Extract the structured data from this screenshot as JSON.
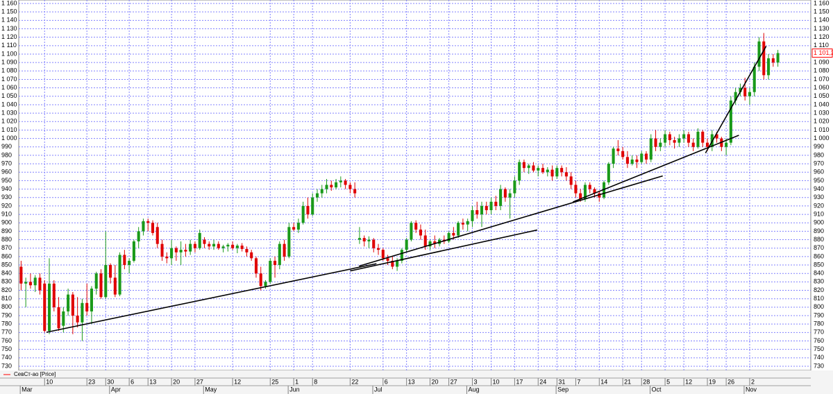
{
  "chart_data": {
    "type": "candlestick",
    "series": [
      {
        "name": "СевСт-ао [Price]",
        "color": "#ff0000",
        "up_color": "#1a9a1a",
        "down_color": "#e00000",
        "values": [
          [
            848,
            855,
            820,
            828
          ],
          [
            828,
            835,
            800,
            830
          ],
          [
            830,
            840,
            822,
            826
          ],
          [
            826,
            838,
            818,
            835
          ],
          [
            835,
            840,
            815,
            820
          ],
          [
            828,
            832,
            770,
            772
          ],
          [
            772,
            858,
            768,
            828
          ],
          [
            828,
            832,
            795,
            800
          ],
          [
            800,
            812,
            772,
            775
          ],
          [
            778,
            800,
            770,
            795
          ],
          [
            795,
            822,
            790,
            815
          ],
          [
            815,
            818,
            768,
            790
          ],
          [
            790,
            812,
            776,
            782
          ],
          [
            782,
            810,
            760,
            805
          ],
          [
            805,
            828,
            790,
            795
          ],
          [
            795,
            825,
            780,
            822
          ],
          [
            822,
            842,
            815,
            840
          ],
          [
            840,
            845,
            810,
            812
          ],
          [
            812,
            890,
            810,
            850
          ],
          [
            850,
            852,
            828,
            835
          ],
          [
            835,
            850,
            812,
            815
          ],
          [
            815,
            865,
            813,
            862
          ],
          [
            862,
            868,
            845,
            850
          ],
          [
            850,
            858,
            840,
            855
          ],
          [
            855,
            880,
            853,
            878
          ],
          [
            878,
            895,
            870,
            890
          ],
          [
            890,
            905,
            885,
            902
          ],
          [
            902,
            905,
            890,
            900
          ],
          [
            900,
            903,
            885,
            888
          ],
          [
            895,
            900,
            870,
            875
          ],
          [
            875,
            880,
            855,
            860
          ],
          [
            860,
            865,
            852,
            858
          ],
          [
            858,
            880,
            850,
            870
          ],
          [
            870,
            872,
            855,
            865
          ],
          [
            865,
            878,
            850,
            868
          ],
          [
            868,
            875,
            860,
            866
          ],
          [
            866,
            880,
            862,
            875
          ],
          [
            875,
            878,
            865,
            870
          ],
          [
            870,
            892,
            868,
            888
          ],
          [
            880,
            883,
            870,
            875
          ],
          [
            875,
            878,
            868,
            872
          ],
          [
            872,
            880,
            868,
            875
          ],
          [
            875,
            878,
            868,
            870
          ],
          [
            870,
            874,
            865,
            872
          ],
          [
            872,
            876,
            866,
            874
          ],
          [
            874,
            878,
            868,
            870
          ],
          [
            870,
            875,
            864,
            873
          ],
          [
            873,
            876,
            866,
            869
          ],
          [
            869,
            872,
            860,
            865
          ],
          [
            865,
            868,
            855,
            858
          ],
          [
            858,
            860,
            835,
            840
          ],
          [
            840,
            848,
            820,
            825
          ],
          [
            825,
            832,
            822,
            830
          ],
          [
            830,
            858,
            828,
            855
          ],
          [
            855,
            860,
            835,
            850
          ],
          [
            850,
            878,
            845,
            875
          ],
          [
            875,
            880,
            855,
            860
          ],
          [
            860,
            900,
            858,
            895
          ],
          [
            895,
            900,
            890,
            892
          ],
          [
            892,
            905,
            888,
            900
          ],
          [
            900,
            925,
            898,
            920
          ],
          [
            920,
            930,
            905,
            910
          ],
          [
            910,
            935,
            908,
            930
          ],
          [
            930,
            940,
            925,
            935
          ],
          [
            935,
            945,
            930,
            940
          ],
          [
            940,
            952,
            935,
            945
          ],
          [
            945,
            950,
            938,
            942
          ],
          [
            942,
            952,
            940,
            948
          ],
          [
            948,
            955,
            942,
            950
          ],
          [
            950,
            952,
            940,
            945
          ],
          [
            945,
            948,
            935,
            940
          ],
          [
            940,
            948,
            930,
            935
          ],
          [
            880,
            895,
            875,
            882
          ],
          [
            882,
            885,
            872,
            878
          ],
          [
            878,
            884,
            870,
            880
          ],
          [
            880,
            882,
            865,
            870
          ],
          [
            870,
            875,
            862,
            868
          ],
          [
            868,
            870,
            855,
            858
          ],
          [
            858,
            862,
            850,
            855
          ],
          [
            855,
            860,
            845,
            848
          ],
          [
            848,
            858,
            843,
            855
          ],
          [
            855,
            870,
            852,
            868
          ],
          [
            868,
            882,
            865,
            880
          ],
          [
            880,
            902,
            878,
            900
          ],
          [
            900,
            903,
            888,
            892
          ],
          [
            892,
            898,
            880,
            885
          ],
          [
            885,
            892,
            868,
            872
          ],
          [
            872,
            880,
            868,
            878
          ],
          [
            878,
            885,
            870,
            875
          ],
          [
            875,
            882,
            872,
            880
          ],
          [
            880,
            885,
            875,
            878
          ],
          [
            878,
            890,
            876,
            888
          ],
          [
            888,
            895,
            880,
            885
          ],
          [
            885,
            902,
            882,
            900
          ],
          [
            900,
            905,
            892,
            898
          ],
          [
            898,
            905,
            890,
            902
          ],
          [
            902,
            920,
            895,
            915
          ],
          [
            915,
            925,
            905,
            910
          ],
          [
            910,
            925,
            895,
            920
          ],
          [
            920,
            925,
            910,
            915
          ],
          [
            915,
            930,
            910,
            925
          ],
          [
            925,
            932,
            915,
            920
          ],
          [
            920,
            945,
            915,
            940
          ],
          [
            940,
            942,
            925,
            930
          ],
          [
            930,
            940,
            905,
            935
          ],
          [
            935,
            955,
            930,
            950
          ],
          [
            950,
            975,
            945,
            972
          ],
          [
            972,
            975,
            960,
            965
          ],
          [
            965,
            970,
            958,
            968
          ],
          [
            968,
            972,
            960,
            962
          ],
          [
            962,
            968,
            955,
            965
          ],
          [
            965,
            970,
            958,
            960
          ],
          [
            960,
            966,
            955,
            963
          ],
          [
            963,
            968,
            950,
            955
          ],
          [
            955,
            968,
            952,
            965
          ],
          [
            965,
            968,
            955,
            960
          ],
          [
            960,
            966,
            950,
            955
          ],
          [
            955,
            960,
            940,
            945
          ],
          [
            945,
            950,
            930,
            935
          ],
          [
            935,
            940,
            925,
            928
          ],
          [
            928,
            948,
            925,
            945
          ],
          [
            945,
            948,
            935,
            940
          ],
          [
            940,
            942,
            930,
            935
          ],
          [
            935,
            938,
            925,
            930
          ],
          [
            930,
            950,
            928,
            948
          ],
          [
            948,
            972,
            945,
            970
          ],
          [
            970,
            990,
            965,
            988
          ],
          [
            988,
            998,
            980,
            985
          ],
          [
            985,
            990,
            975,
            978
          ],
          [
            978,
            985,
            965,
            970
          ],
          [
            970,
            980,
            968,
            975
          ],
          [
            975,
            980,
            965,
            972
          ],
          [
            972,
            985,
            970,
            982
          ],
          [
            982,
            985,
            970,
            975
          ],
          [
            975,
            1005,
            972,
            1000
          ],
          [
            1000,
            1010,
            985,
            990
          ],
          [
            990,
            1000,
            985,
            995
          ],
          [
            995,
            1010,
            990,
            1005
          ],
          [
            1005,
            1008,
            992,
            998
          ],
          [
            998,
            1002,
            988,
            995
          ],
          [
            995,
            1005,
            990,
            1000
          ],
          [
            1000,
            1010,
            995,
            1005
          ],
          [
            1005,
            1008,
            990,
            995
          ],
          [
            995,
            1000,
            985,
            990
          ],
          [
            990,
            1012,
            988,
            1008
          ],
          [
            1008,
            1010,
            990,
            995
          ],
          [
            995,
            1000,
            985,
            990
          ],
          [
            990,
            1010,
            985,
            1005
          ],
          [
            1005,
            1008,
            995,
            1000
          ],
          [
            1000,
            1002,
            985,
            990
          ],
          [
            990,
            1000,
            980,
            995
          ],
          [
            995,
            1050,
            992,
            1045
          ],
          [
            1045,
            1060,
            1040,
            1055
          ],
          [
            1055,
            1065,
            1050,
            1060
          ],
          [
            1060,
            1072,
            1045,
            1050
          ],
          [
            1050,
            1060,
            1040,
            1055
          ],
          [
            1055,
            1090,
            1050,
            1085
          ],
          [
            1085,
            1120,
            1080,
            1115
          ],
          [
            1115,
            1125,
            1070,
            1075
          ],
          [
            1075,
            1100,
            1070,
            1095
          ],
          [
            1095,
            1100,
            1085,
            1090
          ],
          [
            1090,
            1105,
            1085,
            1101.2
          ]
        ]
      }
    ],
    "trendlines": [
      {
        "x": [
          5.4,
          75.6
        ],
        "y": [
          770.3,
          851.6
        ]
      },
      {
        "x": [
          70,
          109.8
        ],
        "y": [
          843.0,
          891.5
        ]
      },
      {
        "x": [
          71.9,
          136.5
        ],
        "y": [
          848.7,
          955.6
        ]
      },
      {
        "x": [
          117.4,
          152.7
        ],
        "y": [
          924.8,
          1003.8
        ]
      },
      {
        "x": [
          145.6,
          158.5
        ],
        "y": [
          982.7,
          1109.3
        ]
      }
    ],
    "last_price": {
      "value": 1101.2,
      "label": "1 101,2"
    },
    "xlim": [
      -0.5,
      168
    ],
    "xticks": [
      {
        "value": 5,
        "label": "10"
      },
      {
        "value": 14,
        "label": "23"
      },
      {
        "value": 18,
        "label": "30"
      },
      {
        "value": 23,
        "label": "6"
      },
      {
        "value": 27,
        "label": "13"
      },
      {
        "value": 32,
        "label": "20"
      },
      {
        "value": 37,
        "label": "27"
      },
      {
        "value": 45,
        "label": "12"
      },
      {
        "value": 53,
        "label": "25"
      },
      {
        "value": 58,
        "label": "1"
      },
      {
        "value": 62,
        "label": "8"
      },
      {
        "value": 70,
        "label": "22"
      },
      {
        "value": 77,
        "label": "6"
      },
      {
        "value": 82,
        "label": "13"
      },
      {
        "value": 87,
        "label": "20"
      },
      {
        "value": 91,
        "label": "27"
      },
      {
        "value": 96,
        "label": "3"
      },
      {
        "value": 100,
        "label": "10"
      },
      {
        "value": 105,
        "label": "17"
      },
      {
        "value": 110,
        "label": "24"
      },
      {
        "value": 114,
        "label": "31"
      },
      {
        "value": 118,
        "label": "7"
      },
      {
        "value": 123,
        "label": "14"
      },
      {
        "value": 128,
        "label": "21"
      },
      {
        "value": 132,
        "label": "28"
      },
      {
        "value": 137,
        "label": "5"
      },
      {
        "value": 141,
        "label": "12"
      },
      {
        "value": 146,
        "label": "19"
      },
      {
        "value": 150,
        "label": "26"
      },
      {
        "value": 155,
        "label": "2"
      }
    ],
    "months": [
      {
        "value": 1,
        "label": "Mar"
      },
      {
        "value": 20,
        "label": "Apr"
      },
      {
        "value": 40,
        "label": "May"
      },
      {
        "value": 58,
        "label": "Jun"
      },
      {
        "value": 76,
        "label": "Jul"
      },
      {
        "value": 96,
        "label": "Aug"
      },
      {
        "value": 115,
        "label": "Sep"
      },
      {
        "value": 135,
        "label": "Oct"
      },
      {
        "value": 155,
        "label": "Nov"
      }
    ],
    "ylim": [
      730,
      1160
    ],
    "yticks": [
      730,
      740,
      750,
      760,
      770,
      780,
      790,
      800,
      810,
      820,
      830,
      840,
      850,
      860,
      870,
      880,
      890,
      900,
      910,
      920,
      930,
      940,
      950,
      960,
      970,
      980,
      990,
      {
        "value": 1000,
        "label": "1 000"
      },
      {
        "value": 1010,
        "label": "1 010"
      },
      {
        "value": 1020,
        "label": "1 020"
      },
      {
        "value": 1030,
        "label": "1 030"
      },
      {
        "value": 1040,
        "label": "1 040"
      },
      {
        "value": 1050,
        "label": "1 050"
      },
      {
        "value": 1060,
        "label": "1 060"
      },
      {
        "value": 1070,
        "label": "1 070"
      },
      {
        "value": 1080,
        "label": "1 080"
      },
      {
        "value": 1090,
        "label": "1 090"
      },
      {
        "value": 1100,
        "label": "1 100"
      },
      {
        "value": 1110,
        "label": "1 110"
      },
      {
        "value": 1120,
        "label": "1 120"
      },
      {
        "value": 1130,
        "label": "1 130"
      },
      {
        "value": 1140,
        "label": "1 140"
      },
      {
        "value": 1150,
        "label": "1 150"
      },
      {
        "value": 1160,
        "label": "1 160"
      }
    ],
    "grid": true
  }
}
